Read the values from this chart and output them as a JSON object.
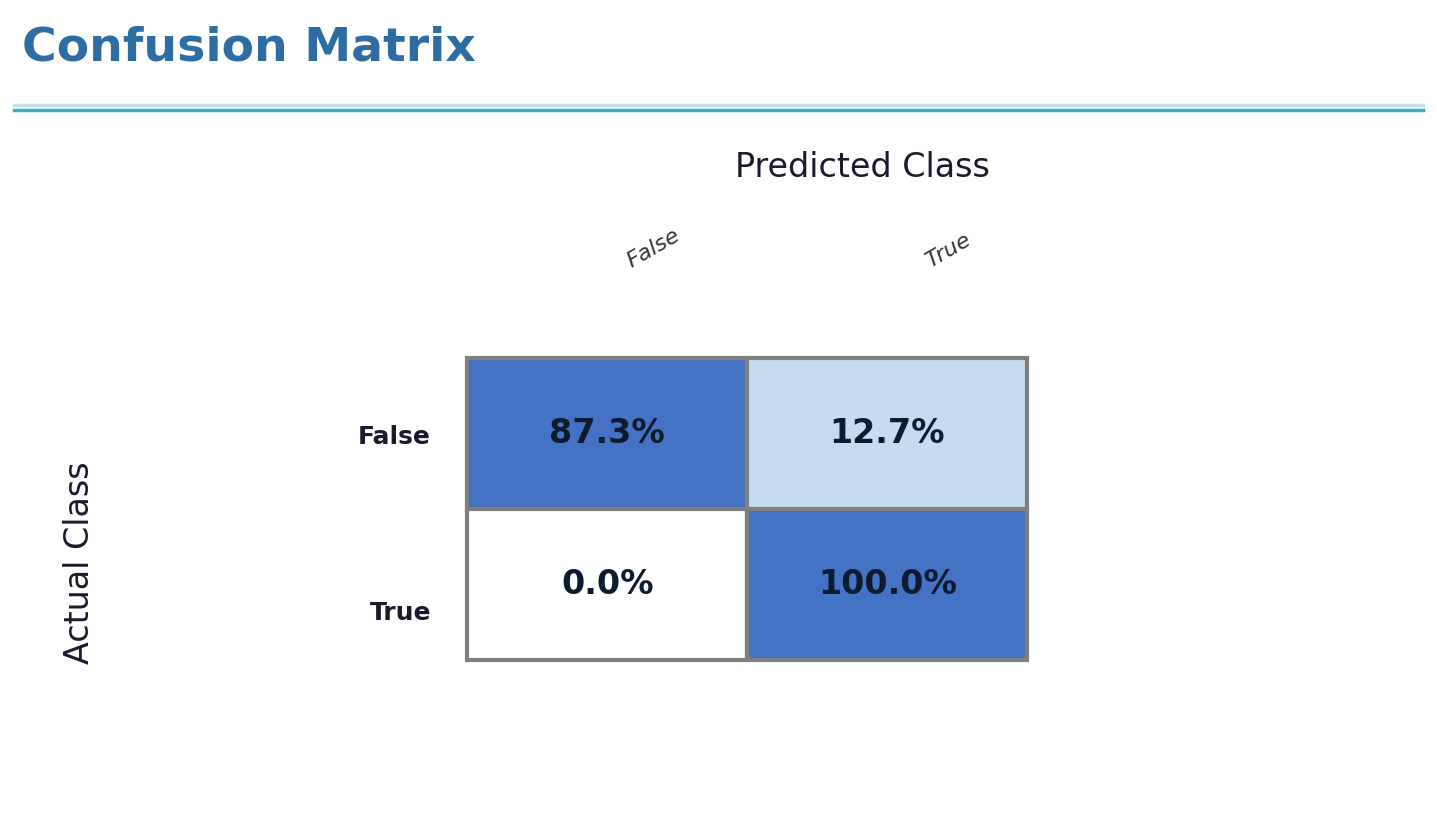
{
  "title": "Confusion Matrix",
  "title_color": "#2E6DA4",
  "title_fontsize": 34,
  "xlabel": "Predicted Class",
  "ylabel": "Actual Class",
  "col_labels": [
    "False",
    "True"
  ],
  "row_labels": [
    "False",
    "True"
  ],
  "values": [
    [
      "87.3%",
      "12.7%"
    ],
    [
      "0.0%",
      "100.0%"
    ]
  ],
  "cell_colors": [
    [
      "#4472C4",
      "#C5DCF0"
    ],
    [
      "#FFFFFF",
      "#4472C4"
    ]
  ],
  "text_colors": [
    [
      "#0d1b2e",
      "#0d1b2e"
    ],
    [
      "#0d1b2e",
      "#0d1b2e"
    ]
  ],
  "grid_color": "#7F7F7F",
  "background_color": "#FFFFFF",
  "header_line_color1": "#C0E0E8",
  "header_line_color2": "#40B0C0",
  "cell_fontsize": 24,
  "axis_label_fontsize": 24,
  "row_tick_fontsize": 18,
  "col_tick_fontsize": 16
}
